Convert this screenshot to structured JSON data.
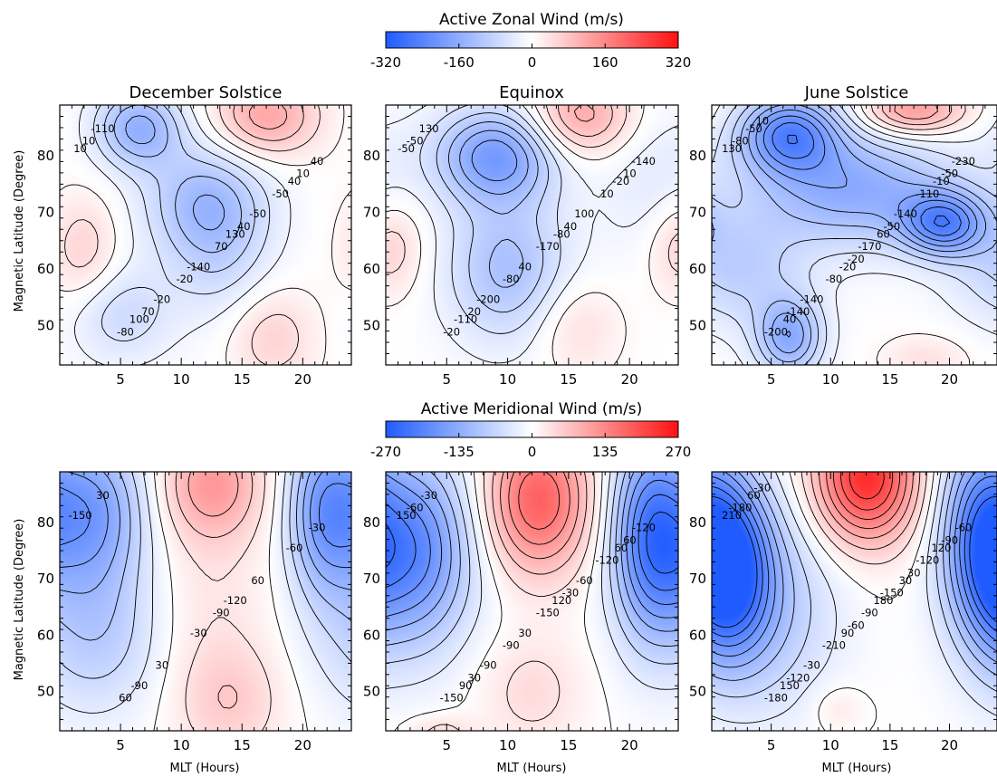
{
  "figure": {
    "ylabel": "Magnetic Latitude (Degree)",
    "xlabel": "MLT (Hours)"
  },
  "colorbars": {
    "zonal": {
      "title": "Active Zonal Wind (m/s)",
      "ticks": [
        "-320",
        "-160",
        "0",
        "160",
        "320"
      ],
      "colors": [
        "#1f5bff",
        "#ffffff",
        "#ff1010"
      ]
    },
    "meridional": {
      "title": "Active Meridional Wind (m/s)",
      "ticks": [
        "-270",
        "-135",
        "0",
        "135",
        "270"
      ],
      "colors": [
        "#1f5bff",
        "#ffffff",
        "#ff1010"
      ]
    }
  },
  "panels": {
    "titles": [
      "December Solstice",
      "Equinox",
      "June Solstice"
    ]
  },
  "axes": {
    "x_ticks": [
      "5",
      "10",
      "15",
      "20"
    ],
    "y_ticks": [
      "80",
      "70",
      "60",
      "50"
    ]
  },
  "chart_data": [
    {
      "type": "heatmap",
      "title": "December Solstice",
      "variable": "Active Zonal Wind (m/s)",
      "xlim": [
        0,
        24
      ],
      "ylim": [
        43,
        89
      ],
      "zlim": [
        -320,
        320
      ],
      "contour_labels": [
        "10",
        "130",
        "100",
        "40",
        "-140",
        "-110",
        "-50",
        "-20",
        "40",
        "70",
        "-80",
        "-50",
        "-20",
        "10",
        "40",
        "70",
        "10"
      ]
    },
    {
      "type": "heatmap",
      "title": "Equinox",
      "variable": "Active Zonal Wind (m/s)",
      "xlim": [
        0,
        24
      ],
      "ylim": [
        43,
        89
      ],
      "zlim": [
        -320,
        320
      ],
      "contour_labels": [
        "-50",
        "-80",
        "-110",
        "-20",
        "40",
        "130",
        "100",
        "-200",
        "-140",
        "-170",
        "-20",
        "10",
        "-80",
        "-50",
        "40",
        "20",
        "10"
      ]
    },
    {
      "type": "heatmap",
      "title": "June Solstice",
      "variable": "Active Zonal Wind (m/s)",
      "xlim": [
        0,
        24
      ],
      "ylim": [
        43,
        89
      ],
      "zlim": [
        -320,
        320
      ],
      "contour_labels": [
        "130",
        "60",
        "40",
        "-10",
        "-20",
        "-50",
        "-140",
        "-140",
        "-230",
        "-170",
        "-200",
        "-110",
        "-80",
        "-80",
        "-50",
        "-140",
        "-50",
        "-20",
        "10"
      ]
    },
    {
      "type": "heatmap",
      "title": "",
      "variable": "Active Meridional Wind (m/s)",
      "xlim": [
        0,
        24
      ],
      "ylim": [
        43,
        89
      ],
      "zlim": [
        -270,
        270
      ],
      "contour_labels": [
        "-150",
        "-120",
        "-90",
        "-60",
        "-30",
        "30",
        "60",
        "30",
        "-30",
        "-90",
        "60"
      ]
    },
    {
      "type": "heatmap",
      "title": "",
      "variable": "Active Meridional Wind (m/s)",
      "xlim": [
        0,
        24
      ],
      "ylim": [
        43,
        89
      ],
      "zlim": [
        -270,
        270
      ],
      "contour_labels": [
        "150",
        "120",
        "90",
        "60",
        "30",
        "-30",
        "-60",
        "-90",
        "-120",
        "-150",
        "-150",
        "-120",
        "-90",
        "-60",
        "-30",
        "30",
        "60"
      ]
    },
    {
      "type": "heatmap",
      "title": "",
      "variable": "Active Meridional Wind (m/s)",
      "xlim": [
        0,
        24
      ],
      "ylim": [
        43,
        89
      ],
      "zlim": [
        -270,
        270
      ],
      "contour_labels": [
        "210",
        "180",
        "150",
        "120",
        "90",
        "60",
        "30",
        "-30",
        "-60",
        "-90",
        "-180",
        "-120",
        "-210",
        "-180",
        "-150",
        "-120",
        "-90",
        "-60",
        "-30",
        "30"
      ]
    }
  ]
}
